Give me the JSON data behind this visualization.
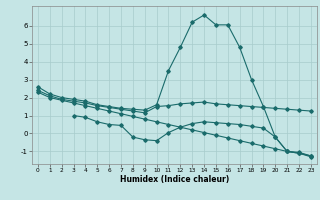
{
  "xlabel": "Humidex (Indice chaleur)",
  "bg_color": "#c5e5e5",
  "grid_color": "#a8cccc",
  "line_color": "#1a6b6b",
  "xlim": [
    -0.5,
    23.5
  ],
  "ylim": [
    -1.7,
    7.1
  ],
  "xticks": [
    0,
    1,
    2,
    3,
    4,
    5,
    6,
    7,
    8,
    9,
    10,
    11,
    12,
    13,
    14,
    15,
    16,
    17,
    18,
    19,
    20,
    21,
    22,
    23
  ],
  "yticks": [
    -1,
    0,
    1,
    2,
    3,
    4,
    5,
    6
  ],
  "line1_x": [
    0,
    1,
    2,
    3,
    4,
    5,
    6,
    7,
    8,
    9,
    10,
    11,
    12,
    13,
    14,
    15,
    16,
    17,
    18,
    19,
    20,
    21,
    22,
    23
  ],
  "line1_y": [
    2.6,
    2.2,
    2.0,
    1.9,
    1.8,
    1.6,
    1.5,
    1.4,
    1.35,
    1.3,
    1.6,
    3.5,
    4.8,
    6.2,
    6.6,
    6.05,
    6.05,
    4.8,
    3.0,
    1.5,
    -0.2,
    -1.0,
    -1.1,
    -1.3
  ],
  "line2_x": [
    0,
    1,
    2,
    3,
    4,
    5,
    6,
    7,
    8,
    9,
    10,
    11,
    12,
    13,
    14,
    15,
    16,
    17,
    18,
    19,
    20,
    21,
    22,
    23
  ],
  "line2_y": [
    2.4,
    2.1,
    1.9,
    1.8,
    1.7,
    1.55,
    1.45,
    1.35,
    1.25,
    1.15,
    1.5,
    1.55,
    1.65,
    1.7,
    1.75,
    1.65,
    1.6,
    1.55,
    1.5,
    1.45,
    1.4,
    1.35,
    1.3,
    1.25
  ],
  "line3_x": [
    3,
    4,
    5,
    6,
    7,
    8,
    9,
    10,
    11,
    12,
    13,
    14,
    15,
    16,
    17,
    18,
    19,
    20,
    21,
    22,
    23
  ],
  "line3_y": [
    1.0,
    0.9,
    0.65,
    0.5,
    0.45,
    -0.2,
    -0.35,
    -0.4,
    0.05,
    0.35,
    0.55,
    0.65,
    0.6,
    0.55,
    0.5,
    0.4,
    0.3,
    -0.2,
    -1.0,
    -1.05,
    -1.25
  ],
  "line4_x": [
    0,
    1,
    2,
    3,
    4,
    5,
    6,
    7,
    8,
    9,
    10,
    11,
    12,
    13,
    14,
    15,
    16,
    17,
    18,
    19,
    20,
    21,
    22,
    23
  ],
  "line4_y": [
    2.3,
    2.0,
    1.85,
    1.7,
    1.55,
    1.4,
    1.25,
    1.1,
    0.95,
    0.8,
    0.65,
    0.5,
    0.35,
    0.2,
    0.05,
    -0.1,
    -0.25,
    -0.4,
    -0.55,
    -0.7,
    -0.85,
    -1.0,
    -1.1,
    -1.25
  ]
}
